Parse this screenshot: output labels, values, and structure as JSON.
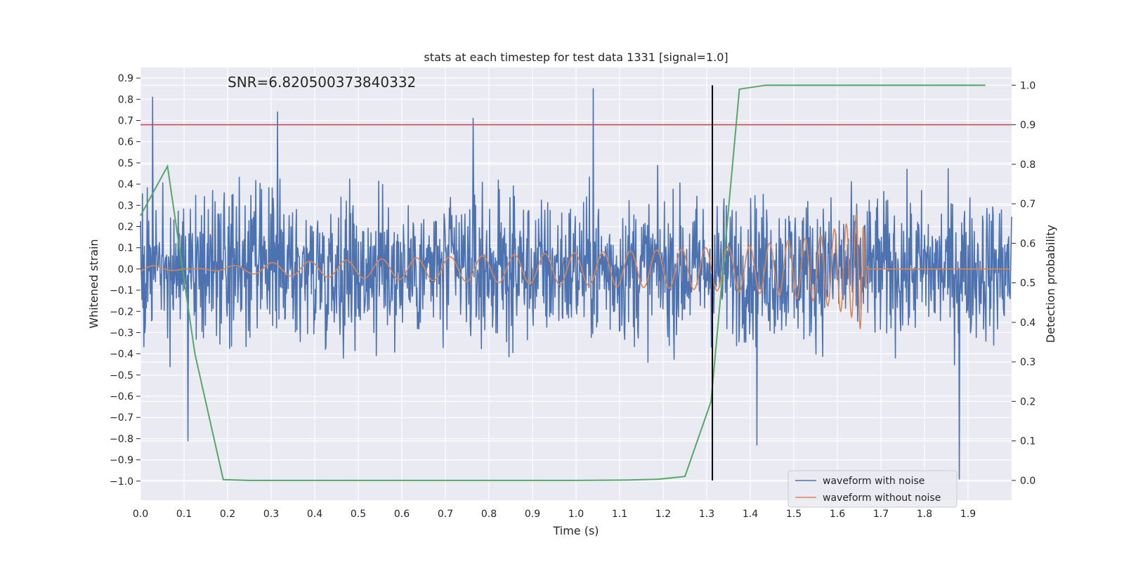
{
  "chart_data": {
    "type": "line",
    "title": "stats at each timestep for test data 1331 [signal=1.0]",
    "annotation": "SNR=6.820500373840332",
    "xlabel": "Time (s)",
    "ylabel_left": "Whitened strain",
    "ylabel_right": "Detection probability",
    "xlim": [
      0.0,
      2.0
    ],
    "ylim_left": [
      -1.09,
      0.95
    ],
    "ylim_right": [
      -0.05,
      1.045
    ],
    "x_ticks": [
      0.0,
      0.1,
      0.2,
      0.3,
      0.4,
      0.5,
      0.6,
      0.7,
      0.8,
      0.9,
      1.0,
      1.1,
      1.2,
      1.3,
      1.4,
      1.5,
      1.6,
      1.7,
      1.8,
      1.9
    ],
    "x_tick_labels": [
      "0.0",
      "0.1",
      "0.2",
      "0.3",
      "0.4",
      "0.5",
      "0.6",
      "0.7",
      "0.8",
      "0.9",
      "1.0",
      "1.1",
      "1.2",
      "1.3",
      "1.4",
      "1.5",
      "1.6",
      "1.7",
      "1.8",
      "1.9"
    ],
    "y_left_ticks": [
      0.9,
      0.8,
      0.7,
      0.6,
      0.5,
      0.4,
      0.3,
      0.2,
      0.1,
      0.0,
      -0.1,
      -0.2,
      -0.3,
      -0.4,
      -0.5,
      -0.6,
      -0.7,
      -0.8,
      -0.9,
      -1.0
    ],
    "y_left_tick_labels": [
      "0.9",
      "0.8",
      "0.7",
      "0.6",
      "0.5",
      "0.4",
      "0.3",
      "0.2",
      "0.1",
      "0.0",
      "−0.1",
      "−0.2",
      "−0.3",
      "−0.4",
      "−0.5",
      "−0.6",
      "−0.7",
      "−0.8",
      "−0.9",
      "−1.0"
    ],
    "y_right_ticks": [
      1.0,
      0.9,
      0.8,
      0.7,
      0.6,
      0.5,
      0.4,
      0.3,
      0.2,
      0.1,
      0.0
    ],
    "y_right_tick_labels": [
      "1.0",
      "0.9",
      "0.8",
      "0.7",
      "0.6",
      "0.5",
      "0.4",
      "0.3",
      "0.2",
      "0.1",
      "0.0"
    ],
    "grid": true,
    "legend_position": "lower-right",
    "series": [
      {
        "name": "waveform with noise",
        "axis": "left",
        "color": "#4c72b0",
        "style": "dense noisy trace, values mostly within ±0.45 with peaks up to 0.85 and down to -1.0",
        "notable_peaks": [
          {
            "x": 0.028,
            "y": 0.81
          },
          {
            "x": 0.109,
            "y": -0.81
          },
          {
            "x": 0.315,
            "y": 0.74
          },
          {
            "x": 0.764,
            "y": 0.71
          },
          {
            "x": 1.04,
            "y": 0.85
          },
          {
            "x": 1.415,
            "y": -0.83
          },
          {
            "x": 1.88,
            "y": -0.99
          }
        ]
      },
      {
        "name": "waveform without noise",
        "axis": "left",
        "color": "#dd8452",
        "style": "chirp: oscillation whose frequency and amplitude rise until about 1.67 s, then flat at 0",
        "points": [
          [
            0.0,
            -0.02
          ],
          [
            0.3,
            0.03
          ],
          [
            0.6,
            0.05
          ],
          [
            0.9,
            0.07
          ],
          [
            1.2,
            0.09
          ],
          [
            1.4,
            0.11
          ],
          [
            1.55,
            0.15
          ],
          [
            1.63,
            0.22
          ],
          [
            1.655,
            0.29
          ],
          [
            1.67,
            0.0
          ],
          [
            2.0,
            0.0
          ]
        ]
      },
      {
        "name": "Detection probability",
        "axis": "right",
        "color": "#55a868",
        "points": [
          [
            0.0,
            0.67
          ],
          [
            0.062,
            0.795
          ],
          [
            0.125,
            0.32
          ],
          [
            0.19,
            0.002
          ],
          [
            0.25,
            0.0
          ],
          [
            1.0,
            0.0
          ],
          [
            1.125,
            0.001
          ],
          [
            1.19,
            0.003
          ],
          [
            1.25,
            0.01
          ],
          [
            1.31,
            0.2
          ],
          [
            1.375,
            0.99
          ],
          [
            1.435,
            1.0
          ],
          [
            1.94,
            1.0
          ]
        ]
      }
    ],
    "hlines": [
      {
        "axis": "right",
        "y": 0.9,
        "color": "#c44e52"
      }
    ],
    "vlines": [
      {
        "x": 1.313,
        "y_range_right": [
          0.0,
          1.0
        ],
        "color": "#000000"
      }
    ]
  }
}
